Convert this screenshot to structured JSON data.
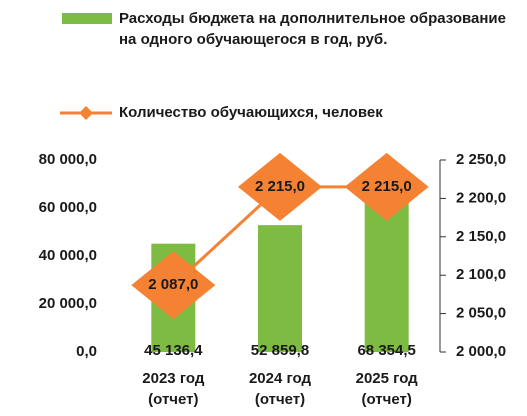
{
  "chart_data": {
    "type": "combo",
    "categories": [
      "2023 год (отчет)",
      "2024 год (отчет)",
      "2025 год (отчет)"
    ],
    "series": [
      {
        "name": "Расходы бюджета на дополнительное образование на одного обучающегося в год, руб.",
        "type": "bar",
        "color": "#7dbb42",
        "values": [
          45136.4,
          52859.8,
          68354.5
        ],
        "value_labels": [
          "45 136,4",
          "52 859,8",
          "68 354,5"
        ]
      },
      {
        "name": "Количество обучающихся, человек",
        "type": "line",
        "axis": "y2",
        "color": "#f58232",
        "values": [
          2087,
          2215,
          2215
        ],
        "value_labels": [
          "2 087,0",
          "2 215,0",
          "2 215,0"
        ]
      }
    ],
    "ylim": [
      0,
      80000
    ],
    "yticks": [
      {
        "value": 0,
        "label": "0,0"
      },
      {
        "value": 20000,
        "label": "20 000,0"
      },
      {
        "value": 40000,
        "label": "40 000,0"
      },
      {
        "value": 60000,
        "label": "60 000,0"
      },
      {
        "value": 80000,
        "label": "80 000,0"
      }
    ],
    "y2lim": [
      2000,
      2250
    ],
    "y2ticks": [
      {
        "value": 2000,
        "label": "2 000,0"
      },
      {
        "value": 2050,
        "label": "2 050,0"
      },
      {
        "value": 2100,
        "label": "2 100,0"
      },
      {
        "value": 2150,
        "label": "2 150,0"
      },
      {
        "value": 2200,
        "label": "2 200,0"
      },
      {
        "value": 2250,
        "label": "2 250,0"
      }
    ]
  }
}
